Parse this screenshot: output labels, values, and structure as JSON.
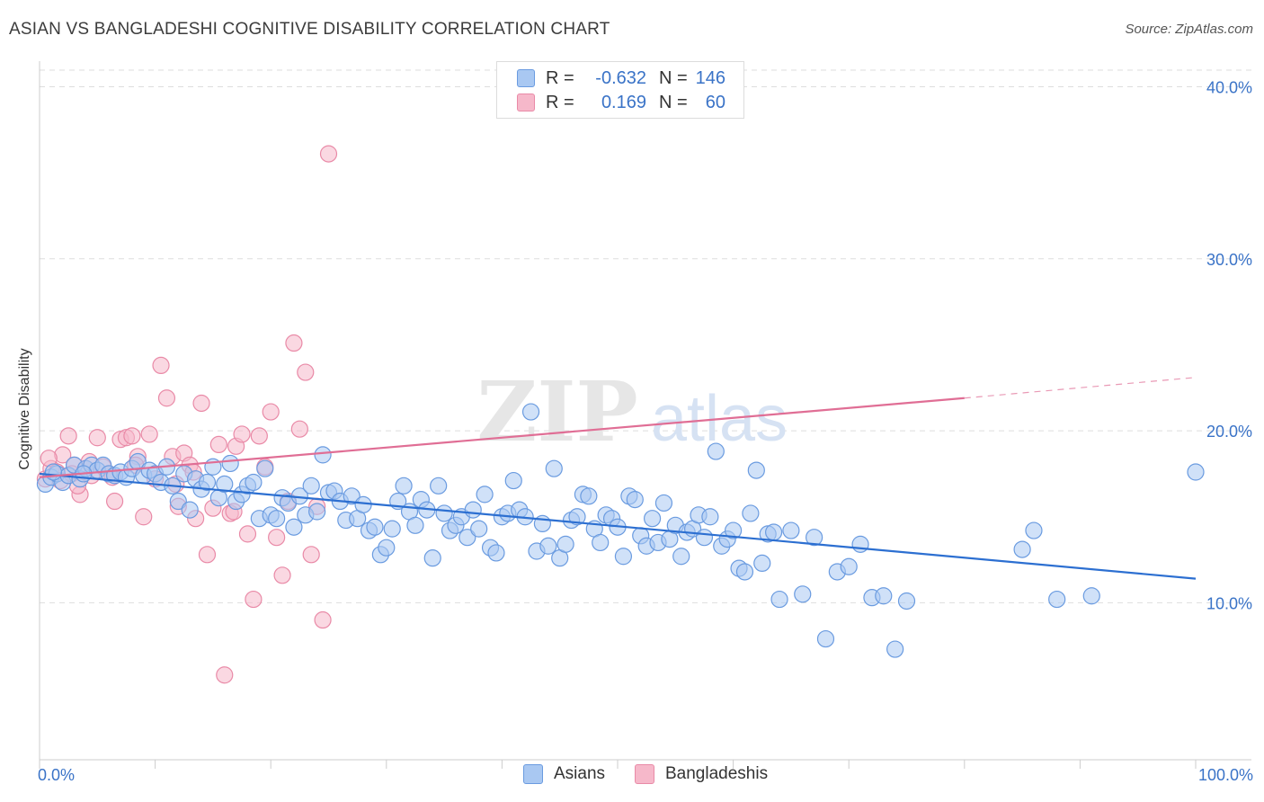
{
  "header": {
    "title": "ASIAN VS BANGLADESHI COGNITIVE DISABILITY CORRELATION CHART",
    "source": "Source: ZipAtlas.com"
  },
  "watermark": {
    "zip": "ZIP",
    "atlas": "atlas"
  },
  "colors": {
    "asian_fill": "#a9c8f2",
    "asian_stroke": "#6a9be0",
    "asian_line": "#2c6fd1",
    "bangla_fill": "#f6b8ca",
    "bangla_stroke": "#e98aa7",
    "bangla_line": "#e06e95",
    "grid": "#dddddd",
    "axis_label": "#3a73c7"
  },
  "legend": {
    "rows": [
      {
        "r_label": "R =",
        "r_value": "-0.632",
        "n_label": "N =",
        "n_value": "146"
      },
      {
        "r_label": "R =",
        "r_value": "0.169",
        "n_label": "N =",
        "n_value": "60"
      }
    ],
    "bottom": [
      {
        "label": "Asians"
      },
      {
        "label": "Bangladeshis"
      }
    ]
  },
  "chart_data": {
    "type": "scatter",
    "title": "ASIAN VS BANGLADESHI COGNITIVE DISABILITY CORRELATION CHART",
    "ylabel": "Cognitive Disability",
    "xlabel": "",
    "xlim": [
      0,
      100
    ],
    "ylim": [
      0,
      41
    ],
    "x_tick_labels": [
      "0.0%",
      "100.0%"
    ],
    "y_ticks": [
      10,
      20,
      30,
      40
    ],
    "y_tick_labels": [
      "10.0%",
      "20.0%",
      "30.0%",
      "40.0%"
    ],
    "grid": true,
    "legend_position": "top-center",
    "series": [
      {
        "name": "Asians",
        "r": -0.632,
        "n": 146,
        "trend": {
          "x": [
            0,
            100
          ],
          "y": [
            17.5,
            11.4
          ]
        },
        "points": [
          [
            0.5,
            16.9
          ],
          [
            1.0,
            17.3
          ],
          [
            1.5,
            17.5
          ],
          [
            2.0,
            17.0
          ],
          [
            2.5,
            17.4
          ],
          [
            3.0,
            18.0
          ],
          [
            3.5,
            17.2
          ],
          [
            4.0,
            17.8
          ],
          [
            4.5,
            18.0
          ],
          [
            5.0,
            17.7
          ],
          [
            5.5,
            18.0
          ],
          [
            6.0,
            17.5
          ],
          [
            6.5,
            17.4
          ],
          [
            7.0,
            17.6
          ],
          [
            7.5,
            17.3
          ],
          [
            8.0,
            17.8
          ],
          [
            8.5,
            18.2
          ],
          [
            9.0,
            17.4
          ],
          [
            9.5,
            17.7
          ],
          [
            10.0,
            17.5
          ],
          [
            10.5,
            17.0
          ],
          [
            11.0,
            17.9
          ],
          [
            11.5,
            16.8
          ],
          [
            12.0,
            15.9
          ],
          [
            12.5,
            17.5
          ],
          [
            13.0,
            15.4
          ],
          [
            13.5,
            17.2
          ],
          [
            14.0,
            16.6
          ],
          [
            14.5,
            17.0
          ],
          [
            15.0,
            17.9
          ],
          [
            15.5,
            16.1
          ],
          [
            16.0,
            16.9
          ],
          [
            16.5,
            18.1
          ],
          [
            17.0,
            15.9
          ],
          [
            17.5,
            16.3
          ],
          [
            18.0,
            16.8
          ],
          [
            18.5,
            17.0
          ],
          [
            19.0,
            14.9
          ],
          [
            19.5,
            17.8
          ],
          [
            20.0,
            15.1
          ],
          [
            20.5,
            14.9
          ],
          [
            21.0,
            16.1
          ],
          [
            21.5,
            15.8
          ],
          [
            22.0,
            14.4
          ],
          [
            22.5,
            16.2
          ],
          [
            23.0,
            15.1
          ],
          [
            23.5,
            16.8
          ],
          [
            24.0,
            15.3
          ],
          [
            24.5,
            18.6
          ],
          [
            25.0,
            16.4
          ],
          [
            25.5,
            16.5
          ],
          [
            26.0,
            15.9
          ],
          [
            26.5,
            14.8
          ],
          [
            27.0,
            16.2
          ],
          [
            27.5,
            14.9
          ],
          [
            28.0,
            15.7
          ],
          [
            28.5,
            14.2
          ],
          [
            29.0,
            14.4
          ],
          [
            29.5,
            12.8
          ],
          [
            30.0,
            13.2
          ],
          [
            30.5,
            14.3
          ],
          [
            31.0,
            15.9
          ],
          [
            31.5,
            16.8
          ],
          [
            32.0,
            15.3
          ],
          [
            32.5,
            14.5
          ],
          [
            33.0,
            16.0
          ],
          [
            33.5,
            15.4
          ],
          [
            34.0,
            12.6
          ],
          [
            34.5,
            16.8
          ],
          [
            35.0,
            15.2
          ],
          [
            35.5,
            14.2
          ],
          [
            36.0,
            14.5
          ],
          [
            36.5,
            15.0
          ],
          [
            37.0,
            13.8
          ],
          [
            37.5,
            15.4
          ],
          [
            38.0,
            14.3
          ],
          [
            38.5,
            16.3
          ],
          [
            39.0,
            13.2
          ],
          [
            39.5,
            12.9
          ],
          [
            40.0,
            15.0
          ],
          [
            40.5,
            15.2
          ],
          [
            41.0,
            17.1
          ],
          [
            41.5,
            15.4
          ],
          [
            42.0,
            15.0
          ],
          [
            42.5,
            21.1
          ],
          [
            43.0,
            13.0
          ],
          [
            43.5,
            14.6
          ],
          [
            44.0,
            13.3
          ],
          [
            44.5,
            17.8
          ],
          [
            45.0,
            12.6
          ],
          [
            45.5,
            13.4
          ],
          [
            46.0,
            14.8
          ],
          [
            46.5,
            15.0
          ],
          [
            47.0,
            16.3
          ],
          [
            47.5,
            16.2
          ],
          [
            48.0,
            14.3
          ],
          [
            48.5,
            13.5
          ],
          [
            49.0,
            15.1
          ],
          [
            49.5,
            14.9
          ],
          [
            50.0,
            14.4
          ],
          [
            50.5,
            12.7
          ],
          [
            51.0,
            16.2
          ],
          [
            51.5,
            16.0
          ],
          [
            52.0,
            13.9
          ],
          [
            52.5,
            13.3
          ],
          [
            53.0,
            14.9
          ],
          [
            53.5,
            13.5
          ],
          [
            54.0,
            15.8
          ],
          [
            54.5,
            13.7
          ],
          [
            55.0,
            14.5
          ],
          [
            55.5,
            12.7
          ],
          [
            56.0,
            14.1
          ],
          [
            56.5,
            14.3
          ],
          [
            57.0,
            15.1
          ],
          [
            57.5,
            13.8
          ],
          [
            58.0,
            15.0
          ],
          [
            58.5,
            18.8
          ],
          [
            59.0,
            13.3
          ],
          [
            59.5,
            13.7
          ],
          [
            60.0,
            14.2
          ],
          [
            60.5,
            12.0
          ],
          [
            61.0,
            11.8
          ],
          [
            61.5,
            15.2
          ],
          [
            62.0,
            17.7
          ],
          [
            62.5,
            12.3
          ],
          [
            63.0,
            14.0
          ],
          [
            64.0,
            10.2
          ],
          [
            65.0,
            14.2
          ],
          [
            66.0,
            10.5
          ],
          [
            67.0,
            13.8
          ],
          [
            68.0,
            7.9
          ],
          [
            69.0,
            11.8
          ],
          [
            70.0,
            12.1
          ],
          [
            71.0,
            13.4
          ],
          [
            72.0,
            10.3
          ],
          [
            73.0,
            10.4
          ],
          [
            74.0,
            7.3
          ],
          [
            75.0,
            10.1
          ],
          [
            86.0,
            14.2
          ],
          [
            85.0,
            13.1
          ],
          [
            88.0,
            10.2
          ],
          [
            91.0,
            10.4
          ],
          [
            100.0,
            17.6
          ],
          [
            63.5,
            14.1
          ],
          [
            1.2,
            17.6
          ],
          [
            3.8,
            17.5
          ]
        ]
      },
      {
        "name": "Bangladeshis",
        "r": 0.169,
        "n": 60,
        "trend": {
          "x": [
            0,
            80
          ],
          "y": [
            17.3,
            21.9
          ]
        },
        "trend_extension": {
          "x": [
            80,
            100
          ],
          "y": [
            21.9,
            23.1
          ]
        },
        "points": [
          [
            0.5,
            17.2
          ],
          [
            1.0,
            17.8
          ],
          [
            1.5,
            17.6
          ],
          [
            2.0,
            18.6
          ],
          [
            2.5,
            19.7
          ],
          [
            3.0,
            18.0
          ],
          [
            3.5,
            16.3
          ],
          [
            4.0,
            17.8
          ],
          [
            4.5,
            17.4
          ],
          [
            5.0,
            19.6
          ],
          [
            5.5,
            17.9
          ],
          [
            6.0,
            17.5
          ],
          [
            6.5,
            15.9
          ],
          [
            7.0,
            19.5
          ],
          [
            7.5,
            19.6
          ],
          [
            8.0,
            19.7
          ],
          [
            8.5,
            18.5
          ],
          [
            9.0,
            15.0
          ],
          [
            9.5,
            19.8
          ],
          [
            10.0,
            17.2
          ],
          [
            10.5,
            23.8
          ],
          [
            11.0,
            21.9
          ],
          [
            11.5,
            18.5
          ],
          [
            12.0,
            15.6
          ],
          [
            12.5,
            18.7
          ],
          [
            13.0,
            18.0
          ],
          [
            13.5,
            14.9
          ],
          [
            14.0,
            21.6
          ],
          [
            14.5,
            12.8
          ],
          [
            15.0,
            15.5
          ],
          [
            15.5,
            19.2
          ],
          [
            16.0,
            5.8
          ],
          [
            16.5,
            15.2
          ],
          [
            17.0,
            19.1
          ],
          [
            17.5,
            19.8
          ],
          [
            18.0,
            14.0
          ],
          [
            18.5,
            10.2
          ],
          [
            19.0,
            19.7
          ],
          [
            19.5,
            17.9
          ],
          [
            20.0,
            21.1
          ],
          [
            20.5,
            13.8
          ],
          [
            21.0,
            11.6
          ],
          [
            21.5,
            15.9
          ],
          [
            22.0,
            25.1
          ],
          [
            22.5,
            20.1
          ],
          [
            23.0,
            23.4
          ],
          [
            23.5,
            12.8
          ],
          [
            24.0,
            15.6
          ],
          [
            24.5,
            9.0
          ],
          [
            25.0,
            36.1
          ],
          [
            0.8,
            18.4
          ],
          [
            1.8,
            17.1
          ],
          [
            2.8,
            17.5
          ],
          [
            3.3,
            16.8
          ],
          [
            4.3,
            18.2
          ],
          [
            6.3,
            17.3
          ],
          [
            8.3,
            18.0
          ],
          [
            11.8,
            16.9
          ],
          [
            13.3,
            17.6
          ],
          [
            16.8,
            15.3
          ]
        ]
      }
    ]
  }
}
